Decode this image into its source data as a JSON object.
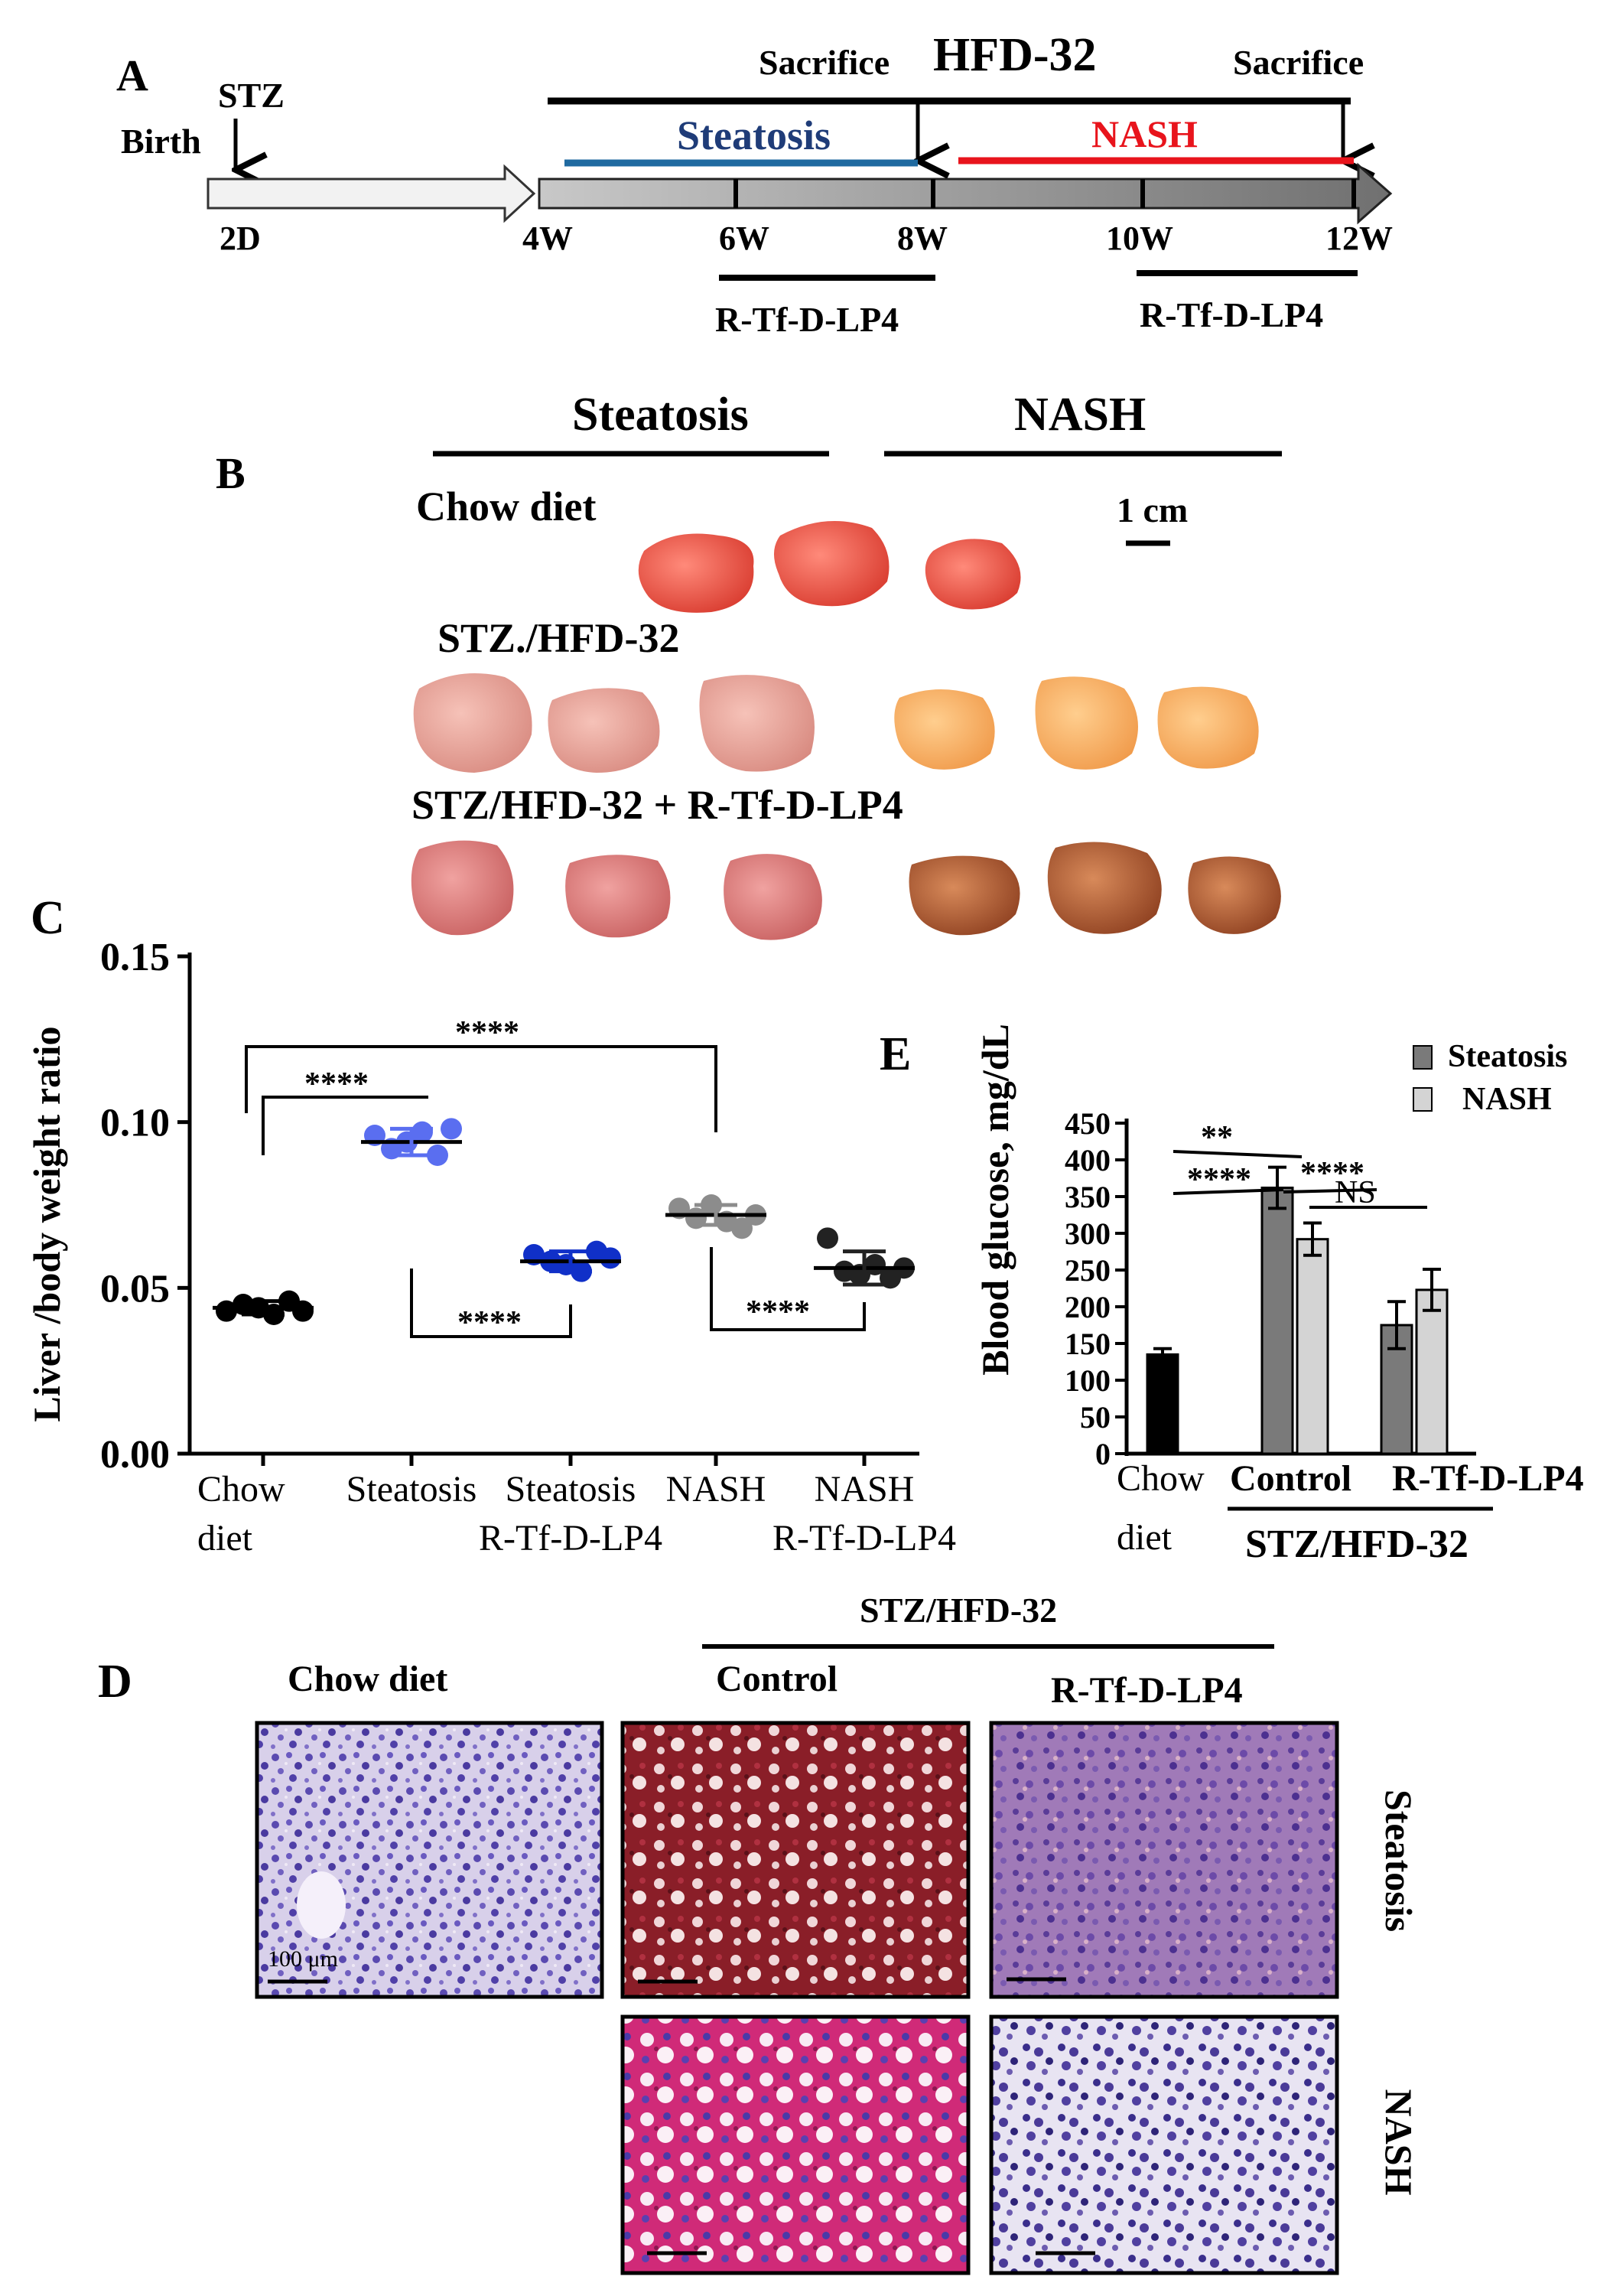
{
  "panels": {
    "a": "A",
    "b": "B",
    "c": "C",
    "d": "D",
    "e": "E"
  },
  "timeline": {
    "birth": "Birth",
    "stz": "STZ",
    "hfd": "HFD-32",
    "sacrifice_1": "Sacrifice",
    "sacrifice_2": "Sacrifice",
    "steatosis": "Steatosis",
    "nash": "NASH",
    "ticks": [
      "2D",
      "4W",
      "6W",
      "8W",
      "10W",
      "12W"
    ],
    "treatment_1": "R-Tf-D-LP4",
    "treatment_2": "R-Tf-D-LP4",
    "colors": {
      "steatosis": "#1f3c78",
      "nash": "#e8141c"
    }
  },
  "livers": {
    "col_steatosis": "Steatosis",
    "col_nash": "NASH",
    "row_chow": "Chow diet",
    "row_stz": "STZ./HFD-32",
    "row_treat": "STZ/HFD-32 + R-Tf-D-LP4",
    "scale": "1 cm"
  },
  "histology": {
    "group": "STZ/HFD-32",
    "col_chow": "Chow diet",
    "col_control": "Control",
    "col_treat": "R-Tf-D-LP4",
    "row_steatosis": "Steatosis",
    "row_nash": "NASH",
    "scale": "100 μm"
  },
  "chart_data": [
    {
      "type": "scatter",
      "panel": "C",
      "ylabel": "Liver /body weight  ratio",
      "ylim": [
        0,
        0.15
      ],
      "yticks": [
        "0.00",
        "0.05",
        "0.10",
        "0.15"
      ],
      "categories": [
        {
          "line1": "Chow",
          "line2": "diet"
        },
        {
          "line1": "Steatosis",
          "line2": ""
        },
        {
          "line1": "Steatosis",
          "line2": "R-Tf-D-LP4"
        },
        {
          "line1": "NASH",
          "line2": ""
        },
        {
          "line1": "NASH",
          "line2": "R-Tf-D-LP4"
        }
      ],
      "colors": [
        "#000000",
        "#5a6ef0",
        "#1030c8",
        "#8c8c8c",
        "#222222"
      ],
      "points": [
        [
          0.043,
          0.045,
          0.044,
          0.042,
          0.046,
          0.043
        ],
        [
          0.096,
          0.092,
          0.094,
          0.097,
          0.09,
          0.098
        ],
        [
          0.06,
          0.058,
          0.057,
          0.055,
          0.061,
          0.059
        ],
        [
          0.074,
          0.071,
          0.075,
          0.07,
          0.068,
          0.072
        ],
        [
          0.065,
          0.055,
          0.054,
          0.057,
          0.053,
          0.056
        ]
      ],
      "means": [
        0.044,
        0.094,
        0.058,
        0.072,
        0.056
      ],
      "sd": [
        0.002,
        0.004,
        0.003,
        0.003,
        0.005
      ],
      "significance": [
        "****",
        "****",
        "****",
        "****"
      ]
    },
    {
      "type": "bar",
      "panel": "E",
      "ylabel": "Blood glucose, mg/dL",
      "ylim": [
        0,
        450
      ],
      "yticks": [
        "0",
        "50",
        "100",
        "150",
        "200",
        "250",
        "300",
        "350",
        "400",
        "450"
      ],
      "legend": [
        "Steatosis",
        "NASH"
      ],
      "group_label": "STZ/HFD-32",
      "categories": [
        {
          "line1": "Chow",
          "line2": "diet"
        },
        {
          "line1": "Control",
          "line2": ""
        },
        {
          "line1": "R-Tf-D-LP4",
          "line2": ""
        }
      ],
      "bars": [
        {
          "cat": 0,
          "series": "Chow",
          "value": 135,
          "err": 8,
          "color": "#000000"
        },
        {
          "cat": 1,
          "series": "Steatosis",
          "value": 362,
          "err": 28,
          "color": "#7a7a7a"
        },
        {
          "cat": 1,
          "series": "NASH",
          "value": 292,
          "err": 22,
          "color": "#d4d4d4"
        },
        {
          "cat": 2,
          "series": "Steatosis",
          "value": 175,
          "err": 32,
          "color": "#7a7a7a"
        },
        {
          "cat": 2,
          "series": "NASH",
          "value": 223,
          "err": 28,
          "color": "#d4d4d4"
        }
      ],
      "significance": [
        "**",
        "****",
        "****",
        "NS"
      ]
    }
  ]
}
